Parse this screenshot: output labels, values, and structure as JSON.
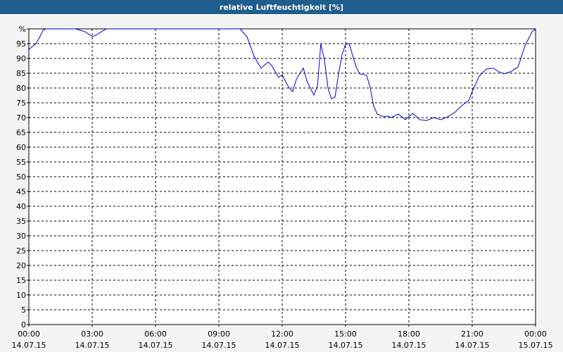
{
  "chart_data": {
    "type": "line",
    "title": "relative Luftfeuchtigkeit [%]",
    "x": [
      0,
      0.33,
      0.5,
      0.67,
      0.8,
      2.2,
      2.3,
      2.67,
      3.0,
      3.2,
      3.5,
      3.67,
      10.0,
      10.33,
      10.67,
      11.0,
      11.33,
      11.5,
      11.83,
      12.0,
      12.17,
      12.33,
      12.5,
      12.67,
      13.0,
      13.17,
      13.5,
      13.67,
      13.83,
      14.0,
      14.17,
      14.33,
      14.5,
      14.67,
      14.83,
      15.0,
      15.17,
      15.5,
      15.67,
      16.0,
      16.17,
      16.33,
      16.5,
      16.83,
      17.0,
      17.17,
      17.5,
      17.83,
      18.17,
      18.33,
      18.5,
      18.83,
      19.17,
      19.5,
      19.83,
      20.17,
      20.5,
      20.83,
      21.0,
      21.33,
      21.67,
      22.0,
      22.33,
      22.5,
      22.83,
      23.17,
      23.5,
      23.83,
      24.0
    ],
    "series": [
      {
        "name": "relative Luftfeuchtigkeit",
        "color": "#0000cc",
        "values": [
          93,
          95,
          97,
          99.5,
          100,
          100,
          99.8,
          99,
          97.4,
          98,
          99.3,
          100,
          100,
          97.4,
          90.7,
          86.7,
          88.8,
          87.6,
          83.6,
          84.5,
          82,
          80,
          78.8,
          83,
          86.7,
          82.4,
          77.6,
          80.7,
          95,
          89.5,
          80,
          76.4,
          76.9,
          84.8,
          91.2,
          94.8,
          95,
          87.1,
          84.8,
          84.3,
          80,
          74,
          71.2,
          70.2,
          70.5,
          70,
          71.2,
          69.3,
          71.4,
          70.5,
          69.3,
          69,
          70,
          69.3,
          70.2,
          71.7,
          74,
          75.7,
          78.8,
          84,
          86.4,
          86.7,
          85.2,
          84.8,
          85.5,
          87.1,
          94.3,
          99,
          100
        ]
      }
    ],
    "xlim": [
      0,
      24
    ],
    "xticks": [
      {
        "value": 0,
        "label": "00:00"
      },
      {
        "value": 3,
        "label": "03:00"
      },
      {
        "value": 6,
        "label": "06:00"
      },
      {
        "value": 9,
        "label": "09:00"
      },
      {
        "value": 12,
        "label": "12:00"
      },
      {
        "value": 15,
        "label": "15:00"
      },
      {
        "value": 18,
        "label": "18:00"
      },
      {
        "value": 21,
        "label": "21:00"
      },
      {
        "value": 24,
        "label": "00:00"
      }
    ],
    "xtick_dates": [
      "14.07.15",
      "14.07.15",
      "14.07.15",
      "14.07.15",
      "14.07.15",
      "14.07.15",
      "14.07.15",
      "14.07.15",
      "15.07.15"
    ],
    "ylim": [
      0,
      100
    ],
    "yticks": [
      0,
      5,
      10,
      15,
      20,
      25,
      30,
      35,
      40,
      45,
      50,
      55,
      60,
      65,
      70,
      75,
      80,
      85,
      90,
      95,
      {
        "value": 100,
        "label": "%"
      }
    ],
    "grid": true
  }
}
